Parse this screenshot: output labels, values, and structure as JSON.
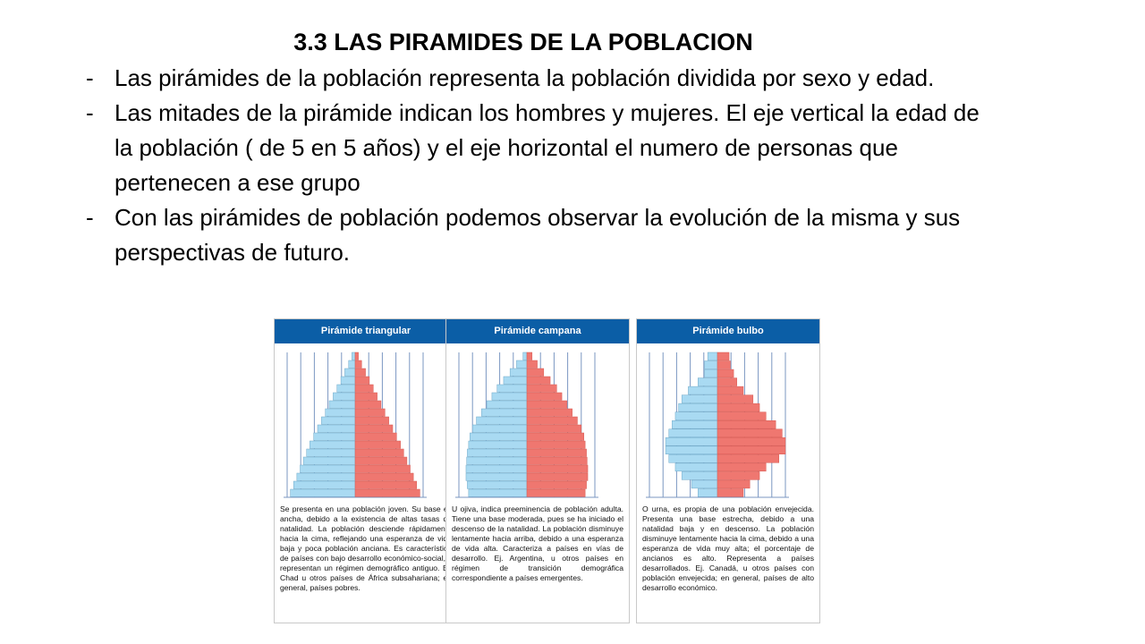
{
  "slide": {
    "title": "3.3 LAS PIRAMIDES DE LA POBLACION",
    "bullets": [
      "Las pirámides de la población representa la población dividida por sexo y edad.",
      "Las mitades de la pirámide indican los hombres y mujeres. El eje vertical la edad de la población ( de 5 en 5 años) y el eje horizontal el numero de personas que pertenecen a ese grupo",
      "Con las pirámides de población podemos observar la evolución de la misma y sus perspectivas de futuro."
    ],
    "bullet_marker": "-"
  },
  "colors": {
    "header": "#0b5ea6",
    "male": "#a9daf2",
    "female": "#ef7770",
    "grid": "#7b97c2"
  },
  "panels": [
    {
      "title": "Pirámide triangular",
      "description": "Se presenta en una población joven. Su base es ancha, debido a la existencia de altas tasas de natalidad. La población desciende rápidamente hacia la cima, reflejando una esperanza de vida baja y poca población anciana. Es característica de países con bajo desarrollo económico-social, y representan un régimen demográfico antiguo. Ej. Chad u otros países de África subsahariana; en general, países pobres."
    },
    {
      "title": "Pirámide campana",
      "description": "U ojiva, indica preeminencia de población adulta. Tiene una base moderada, pues se ha iniciado el descenso de la natalidad. La población disminuye lentamente hacia arriba, debido a una esperanza de vida alta. Caracteriza a países en vías de desarrollo. Ej. Argentina, u otros países en régimen de transición demográfica correspondiente a países emergentes."
    },
    {
      "title": "Pirámide bulbo",
      "description": "O urna, es propia de una población envejecida. Presenta una base estrecha, debido a una natalidad baja y en descenso. La población disminuye lentamente hacia la cima, debido a una esperanza de vida muy alta; el porcentaje de ancianos es alto. Representa a países desarrollados. Ej. Canadá, u otros países con población envejecida; en general, países de alto desarrollo económico."
    }
  ],
  "chart_data": [
    {
      "type": "bar",
      "orientation": "population-pyramid",
      "male": [
        10,
        9.5,
        9,
        8.5,
        8,
        7.5,
        7,
        6.4,
        5.8,
        5.2,
        4.6,
        4,
        3.4,
        2.8,
        2.2,
        1.6,
        1,
        0.5
      ],
      "female": [
        10,
        9.5,
        9,
        8.5,
        8,
        7.5,
        7,
        6.4,
        5.8,
        5.2,
        4.6,
        4,
        3.4,
        2.8,
        2.2,
        1.6,
        1,
        0.5
      ],
      "grid": true
    },
    {
      "type": "bar",
      "orientation": "population-pyramid",
      "male": [
        9,
        9.2,
        9.4,
        9.4,
        9.3,
        9.2,
        9,
        8.8,
        8.4,
        7.8,
        7,
        6.2,
        5.4,
        4.6,
        3.6,
        2.6,
        1.6,
        0.6
      ],
      "female": [
        9,
        9.2,
        9.4,
        9.4,
        9.3,
        9.2,
        9,
        8.8,
        8.4,
        7.8,
        7,
        6.2,
        5.4,
        4.6,
        3.6,
        2.6,
        1.6,
        0.8
      ],
      "grid": true
    },
    {
      "type": "bar",
      "orientation": "population-pyramid",
      "male": [
        3,
        4,
        5.5,
        6.5,
        7.5,
        8,
        8,
        7.5,
        7,
        6.5,
        6,
        5.5,
        4.5,
        3,
        2,
        2,
        1.5
      ],
      "female": [
        4,
        5,
        6.5,
        7.5,
        9.5,
        10.5,
        10.5,
        10,
        9,
        7.5,
        6.5,
        5.5,
        4,
        3,
        2.5,
        2,
        1.8
      ],
      "grid": true
    }
  ]
}
